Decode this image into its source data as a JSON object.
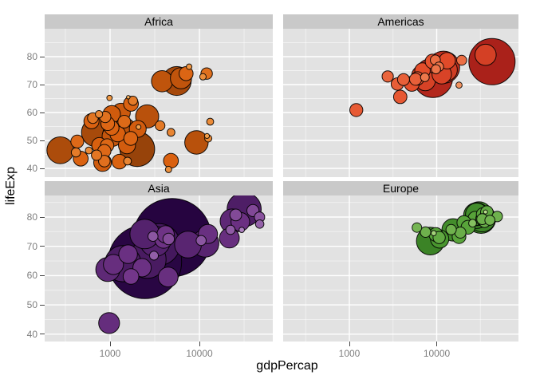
{
  "chart_data": {
    "type": "scatter",
    "title": "",
    "xlabel": "gdpPercap",
    "ylabel": "lifeExp",
    "x_scale": "log10",
    "x_range": [
      180,
      70000
    ],
    "y_range": [
      36.5,
      90
    ],
    "x_ticks": [
      1000,
      10000
    ],
    "x_tick_labels": [
      "1000",
      "10000"
    ],
    "x_minor_ticks": [
      316.23,
      3162.3,
      31623
    ],
    "y_ticks": [
      40,
      50,
      60,
      70,
      80
    ],
    "y_tick_labels": [
      "40",
      "50",
      "60",
      "70",
      "80"
    ],
    "y_minor_ticks": [
      45,
      55,
      65,
      75,
      85
    ],
    "grid": "major white, minor faint white on gray panel",
    "legend": "none",
    "size_encoding": "bubble size and fill darkness scale with population (millions)",
    "point_format": [
      "gdpPercap",
      "lifeExp",
      "pop_millions"
    ],
    "panels": [
      {
        "name": "Africa",
        "palette": [
          "#FDB863",
          "#D95F0E",
          "#542605"
        ],
        "points": [
          [
            6223,
            72.3,
            33.3
          ],
          [
            4797,
            42.7,
            12.4
          ],
          [
            1441,
            56.7,
            8.1
          ],
          [
            12570,
            50.7,
            1.6
          ],
          [
            1217,
            52.3,
            14.3
          ],
          [
            430,
            49.6,
            8.4
          ],
          [
            2042,
            54.1,
            17.7
          ],
          [
            706,
            44.7,
            4.4
          ],
          [
            1704,
            50.7,
            10.2
          ],
          [
            986,
            65.2,
            0.7
          ],
          [
            277,
            46.5,
            64.6
          ],
          [
            3632,
            55.3,
            3.8
          ],
          [
            1545,
            48.3,
            18
          ],
          [
            2082,
            54.8,
            0.5
          ],
          [
            5581,
            71.3,
            80.3
          ],
          [
            12154,
            51.6,
            0.55
          ],
          [
            641,
            58,
            4.9
          ],
          [
            691,
            52.9,
            76.5
          ],
          [
            13206,
            56.7,
            1.5
          ],
          [
            752,
            59.4,
            1.7
          ],
          [
            1328,
            60,
            22.9
          ],
          [
            942,
            56,
            9.9
          ],
          [
            579,
            46.4,
            1.5
          ],
          [
            1463,
            54.1,
            35.6
          ],
          [
            1569,
            42.6,
            2
          ],
          [
            415,
            45.7,
            3.2
          ],
          [
            12057,
            73.95,
            6
          ],
          [
            1045,
            59.4,
            19.2
          ],
          [
            759,
            48.3,
            13.3
          ],
          [
            1042,
            54.5,
            12
          ],
          [
            1803,
            64.2,
            3.3
          ],
          [
            10957,
            72.8,
            1.25
          ],
          [
            3820,
            71.2,
            33.8
          ],
          [
            824,
            42.1,
            20
          ],
          [
            4811,
            52.9,
            2
          ],
          [
            619,
            56.9,
            12.9
          ],
          [
            2014,
            46.9,
            135
          ],
          [
            7670,
            76.4,
            0.8
          ],
          [
            863,
            46.2,
            8.9
          ],
          [
            1598,
            65.5,
            0.2
          ],
          [
            1712,
            63.1,
            12.3
          ],
          [
            863,
            42.6,
            6.1
          ],
          [
            926,
            48.2,
            9.1
          ],
          [
            9270,
            49.3,
            44
          ],
          [
            2602,
            58.6,
            42.3
          ],
          [
            4513,
            39.6,
            1.1
          ],
          [
            1107,
            52.5,
            38.1
          ],
          [
            883,
            58.4,
            5.7
          ],
          [
            7093,
            73.9,
            10.3
          ],
          [
            1056,
            51.5,
            29.2
          ],
          [
            1271,
            42.4,
            11.7
          ],
          [
            469,
            43.5,
            12.3
          ]
        ]
      },
      {
        "name": "Americas",
        "palette": [
          "#FDC888",
          "#E44C2A",
          "#8E0C12"
        ],
        "points": [
          [
            12779,
            75.3,
            40.3
          ],
          [
            3822,
            65.6,
            9.1
          ],
          [
            9066,
            72.4,
            190
          ],
          [
            36319,
            80.65,
            33.4
          ],
          [
            13172,
            78.55,
            16.3
          ],
          [
            7007,
            72.9,
            44.2
          ],
          [
            9645,
            78.8,
            4.1
          ],
          [
            8948,
            78.3,
            11.4
          ],
          [
            6025,
            72.2,
            9.3
          ],
          [
            6873,
            75,
            13.8
          ],
          [
            5728,
            71.9,
            6.9
          ],
          [
            5186,
            70.3,
            12.6
          ],
          [
            1201,
            60.9,
            8.5
          ],
          [
            3548,
            70.2,
            7.5
          ],
          [
            7321,
            72.6,
            2.8
          ],
          [
            11978,
            76.2,
            108.7
          ],
          [
            2749,
            72.9,
            5.7
          ],
          [
            9809,
            75.5,
            3.2
          ],
          [
            4173,
            71.8,
            6.7
          ],
          [
            7409,
            71.4,
            28.7
          ],
          [
            19329,
            78.7,
            4
          ],
          [
            18009,
            69.8,
            1.06
          ],
          [
            42952,
            78.2,
            301
          ],
          [
            10611,
            76.4,
            3.45
          ],
          [
            11416,
            73.7,
            26.1
          ]
        ]
      },
      {
        "name": "Asia",
        "palette": [
          "#CBA8DC",
          "#73368A",
          "#260440"
        ],
        "points": [
          [
            975,
            43.8,
            31.9
          ],
          [
            29796,
            75.6,
            0.7
          ],
          [
            1391,
            64.1,
            150.4
          ],
          [
            1714,
            59.7,
            14.1
          ],
          [
            4959,
            73,
            1318.7
          ],
          [
            39725,
            82.2,
            7
          ],
          [
            2452,
            64.7,
            1110.4
          ],
          [
            3541,
            70.65,
            223.5
          ],
          [
            11606,
            71,
            69.5
          ],
          [
            4471,
            59.5,
            27.5
          ],
          [
            25523,
            80.7,
            6.4
          ],
          [
            31656,
            82.6,
            127.5
          ],
          [
            4519,
            72.5,
            6
          ],
          [
            1593,
            67.3,
            23.3
          ],
          [
            23348,
            78.6,
            49
          ],
          [
            47307,
            77.6,
            2.5
          ],
          [
            10461,
            72,
            4
          ],
          [
            12452,
            74.2,
            24.8
          ],
          [
            3096,
            66.8,
            2.9
          ],
          [
            944,
            62.1,
            47.8
          ],
          [
            1091,
            63.8,
            28.9
          ],
          [
            22316,
            75.6,
            3.2
          ],
          [
            2606,
            65.5,
            169.3
          ],
          [
            3190,
            71.7,
            91.1
          ],
          [
            21655,
            72.8,
            27.6
          ],
          [
            47143,
            79.97,
            4.55
          ],
          [
            3970,
            72.4,
            20.4
          ],
          [
            4185,
            74.1,
            19.3
          ],
          [
            28718,
            78.4,
            23.2
          ],
          [
            7458,
            70.6,
            65.1
          ],
          [
            2442,
            74.2,
            85.3
          ],
          [
            3025,
            73.4,
            4
          ],
          [
            2281,
            62.7,
            22.2
          ]
        ]
      },
      {
        "name": "Europe",
        "palette": [
          "#CDEC9C",
          "#4F9E33",
          "#175210"
        ],
        "points": [
          [
            5937,
            76.4,
            3.6
          ],
          [
            36126,
            79.8,
            8.2
          ],
          [
            33693,
            79.4,
            10.4
          ],
          [
            7446,
            74.85,
            4.6
          ],
          [
            10681,
            73,
            7.3
          ],
          [
            14619,
            75.7,
            4.5
          ],
          [
            22833,
            76.5,
            10.2
          ],
          [
            35278,
            78.3,
            5.5
          ],
          [
            33207,
            79.3,
            5.2
          ],
          [
            30470,
            80.7,
            61
          ],
          [
            32170,
            79.4,
            82.4
          ],
          [
            27538,
            79.5,
            10.7
          ],
          [
            18009,
            73.3,
            9.95
          ],
          [
            36181,
            81.75,
            0.3
          ],
          [
            40676,
            78.9,
            4.1
          ],
          [
            28570,
            80.5,
            58.1
          ],
          [
            9254,
            74.5,
            0.68
          ],
          [
            36798,
            79.8,
            16.6
          ],
          [
            49357,
            80.2,
            4.6
          ],
          [
            15390,
            75.6,
            38.5
          ],
          [
            20510,
            78.1,
            10.6
          ],
          [
            10808,
            72.5,
            22.3
          ],
          [
            9787,
            74,
            10.2
          ],
          [
            18678,
            74.7,
            5.4
          ],
          [
            25768,
            77.9,
            2
          ],
          [
            28821,
            80.9,
            40.4
          ],
          [
            33860,
            80.9,
            9
          ],
          [
            37506,
            81.7,
            7.6
          ],
          [
            8458,
            71.8,
            71.2
          ],
          [
            33203,
            79.4,
            60.8
          ]
        ]
      }
    ]
  },
  "style": {
    "page_bg": "#FFFFFF",
    "panel_bg": "#E2E2E2",
    "strip_bg": "#C9C9C9",
    "strip_text": "#000000",
    "grid_major": "#FFFFFF",
    "grid_minor_opacity": 0.55,
    "tick_mark_color": "#454545",
    "tick_label_color": "#7E7E7E",
    "axis_title_color": "#000000",
    "bubble_stroke": "#000000"
  }
}
